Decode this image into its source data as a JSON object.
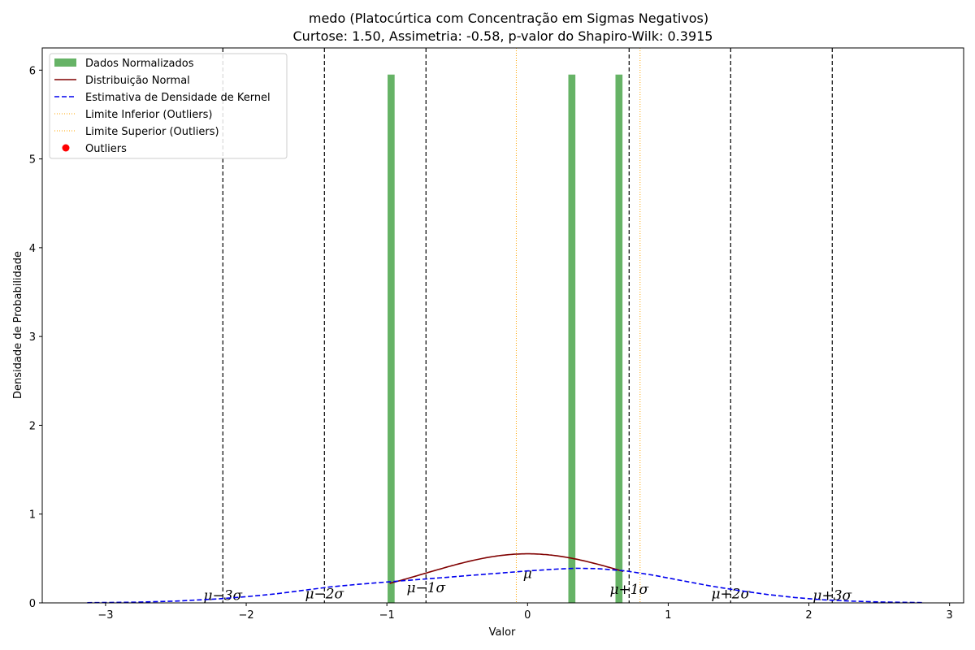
{
  "chart_data": {
    "type": "bar",
    "title": "medo (Platocúrtica com Concentração em Sigmas Negativos)",
    "subtitle": "Curtose: 1.50, Assimetria: -0.58, p-valor do Shapiro-Wilk: 0.3915",
    "xlabel": "Valor",
    "ylabel": "Densidade de Probabilidade",
    "xlim": [
      -3.45,
      3.1
    ],
    "ylim": [
      0,
      6.25
    ],
    "xticks": [
      -3,
      -2,
      -1,
      0,
      1,
      2,
      3
    ],
    "xtick_labels": [
      "−3",
      "−2",
      "−1",
      "0",
      "1",
      "2",
      "3"
    ],
    "yticks": [
      0,
      1,
      2,
      3,
      4,
      5,
      6
    ],
    "ytick_labels": [
      "0",
      "1",
      "2",
      "3",
      "4",
      "5",
      "6"
    ],
    "grid": false,
    "legend_position": "top-left",
    "histogram": {
      "name": "Dados Normalizados",
      "color": "#66b366",
      "bin_width": 0.05,
      "bins": [
        {
          "x": -0.97,
          "height": 5.95
        },
        {
          "x": 0.315,
          "height": 5.95
        },
        {
          "x": 0.65,
          "height": 5.95
        }
      ]
    },
    "normal_curve": {
      "name": "Distribuição Normal",
      "color": "#800000",
      "mean": 0,
      "std": 0.722,
      "x_range": [
        -0.98,
        0.68
      ]
    },
    "kde_curve": {
      "name": "Estimativa de Densidade de Kernel",
      "color": "#0000ee",
      "style": "dashed",
      "x_range": [
        -3.13,
        2.81
      ],
      "points": [
        [
          -3.13,
          0.002
        ],
        [
          -2.8,
          0.007
        ],
        [
          -2.5,
          0.02
        ],
        [
          -2.2,
          0.045
        ],
        [
          -2.0,
          0.07
        ],
        [
          -1.8,
          0.1
        ],
        [
          -1.6,
          0.14
        ],
        [
          -1.4,
          0.18
        ],
        [
          -1.2,
          0.21
        ],
        [
          -1.0,
          0.235
        ],
        [
          -0.8,
          0.26
        ],
        [
          -0.6,
          0.285
        ],
        [
          -0.4,
          0.31
        ],
        [
          -0.2,
          0.335
        ],
        [
          0.0,
          0.36
        ],
        [
          0.2,
          0.38
        ],
        [
          0.35,
          0.39
        ],
        [
          0.5,
          0.385
        ],
        [
          0.7,
          0.36
        ],
        [
          0.9,
          0.31
        ],
        [
          1.1,
          0.25
        ],
        [
          1.3,
          0.19
        ],
        [
          1.5,
          0.14
        ],
        [
          1.7,
          0.095
        ],
        [
          1.9,
          0.06
        ],
        [
          2.1,
          0.035
        ],
        [
          2.3,
          0.02
        ],
        [
          2.5,
          0.01
        ],
        [
          2.81,
          0.003
        ]
      ]
    },
    "outlier_limits": {
      "lower": {
        "name": "Limite Inferior (Outliers)",
        "x": -0.08,
        "color": "#ffa500"
      },
      "upper": {
        "name": "Limite Superior (Outliers)",
        "x": 0.8,
        "color": "#ffa500"
      }
    },
    "outliers": {
      "name": "Outliers",
      "color": "#ff0000",
      "points": []
    },
    "sigma_lines": [
      {
        "x": -2.166,
        "label": "μ−3σ"
      },
      {
        "x": -1.444,
        "label": "μ−2σ"
      },
      {
        "x": -0.722,
        "label": "μ−1σ"
      },
      {
        "x": 0.722,
        "label": "μ+1σ"
      },
      {
        "x": 1.444,
        "label": "μ+2σ"
      },
      {
        "x": 2.166,
        "label": "μ+3σ"
      }
    ],
    "mean_label": "μ",
    "sigma_label_y": [
      0.03,
      0.05,
      0.12,
      0.1,
      0.05,
      0.03
    ]
  }
}
